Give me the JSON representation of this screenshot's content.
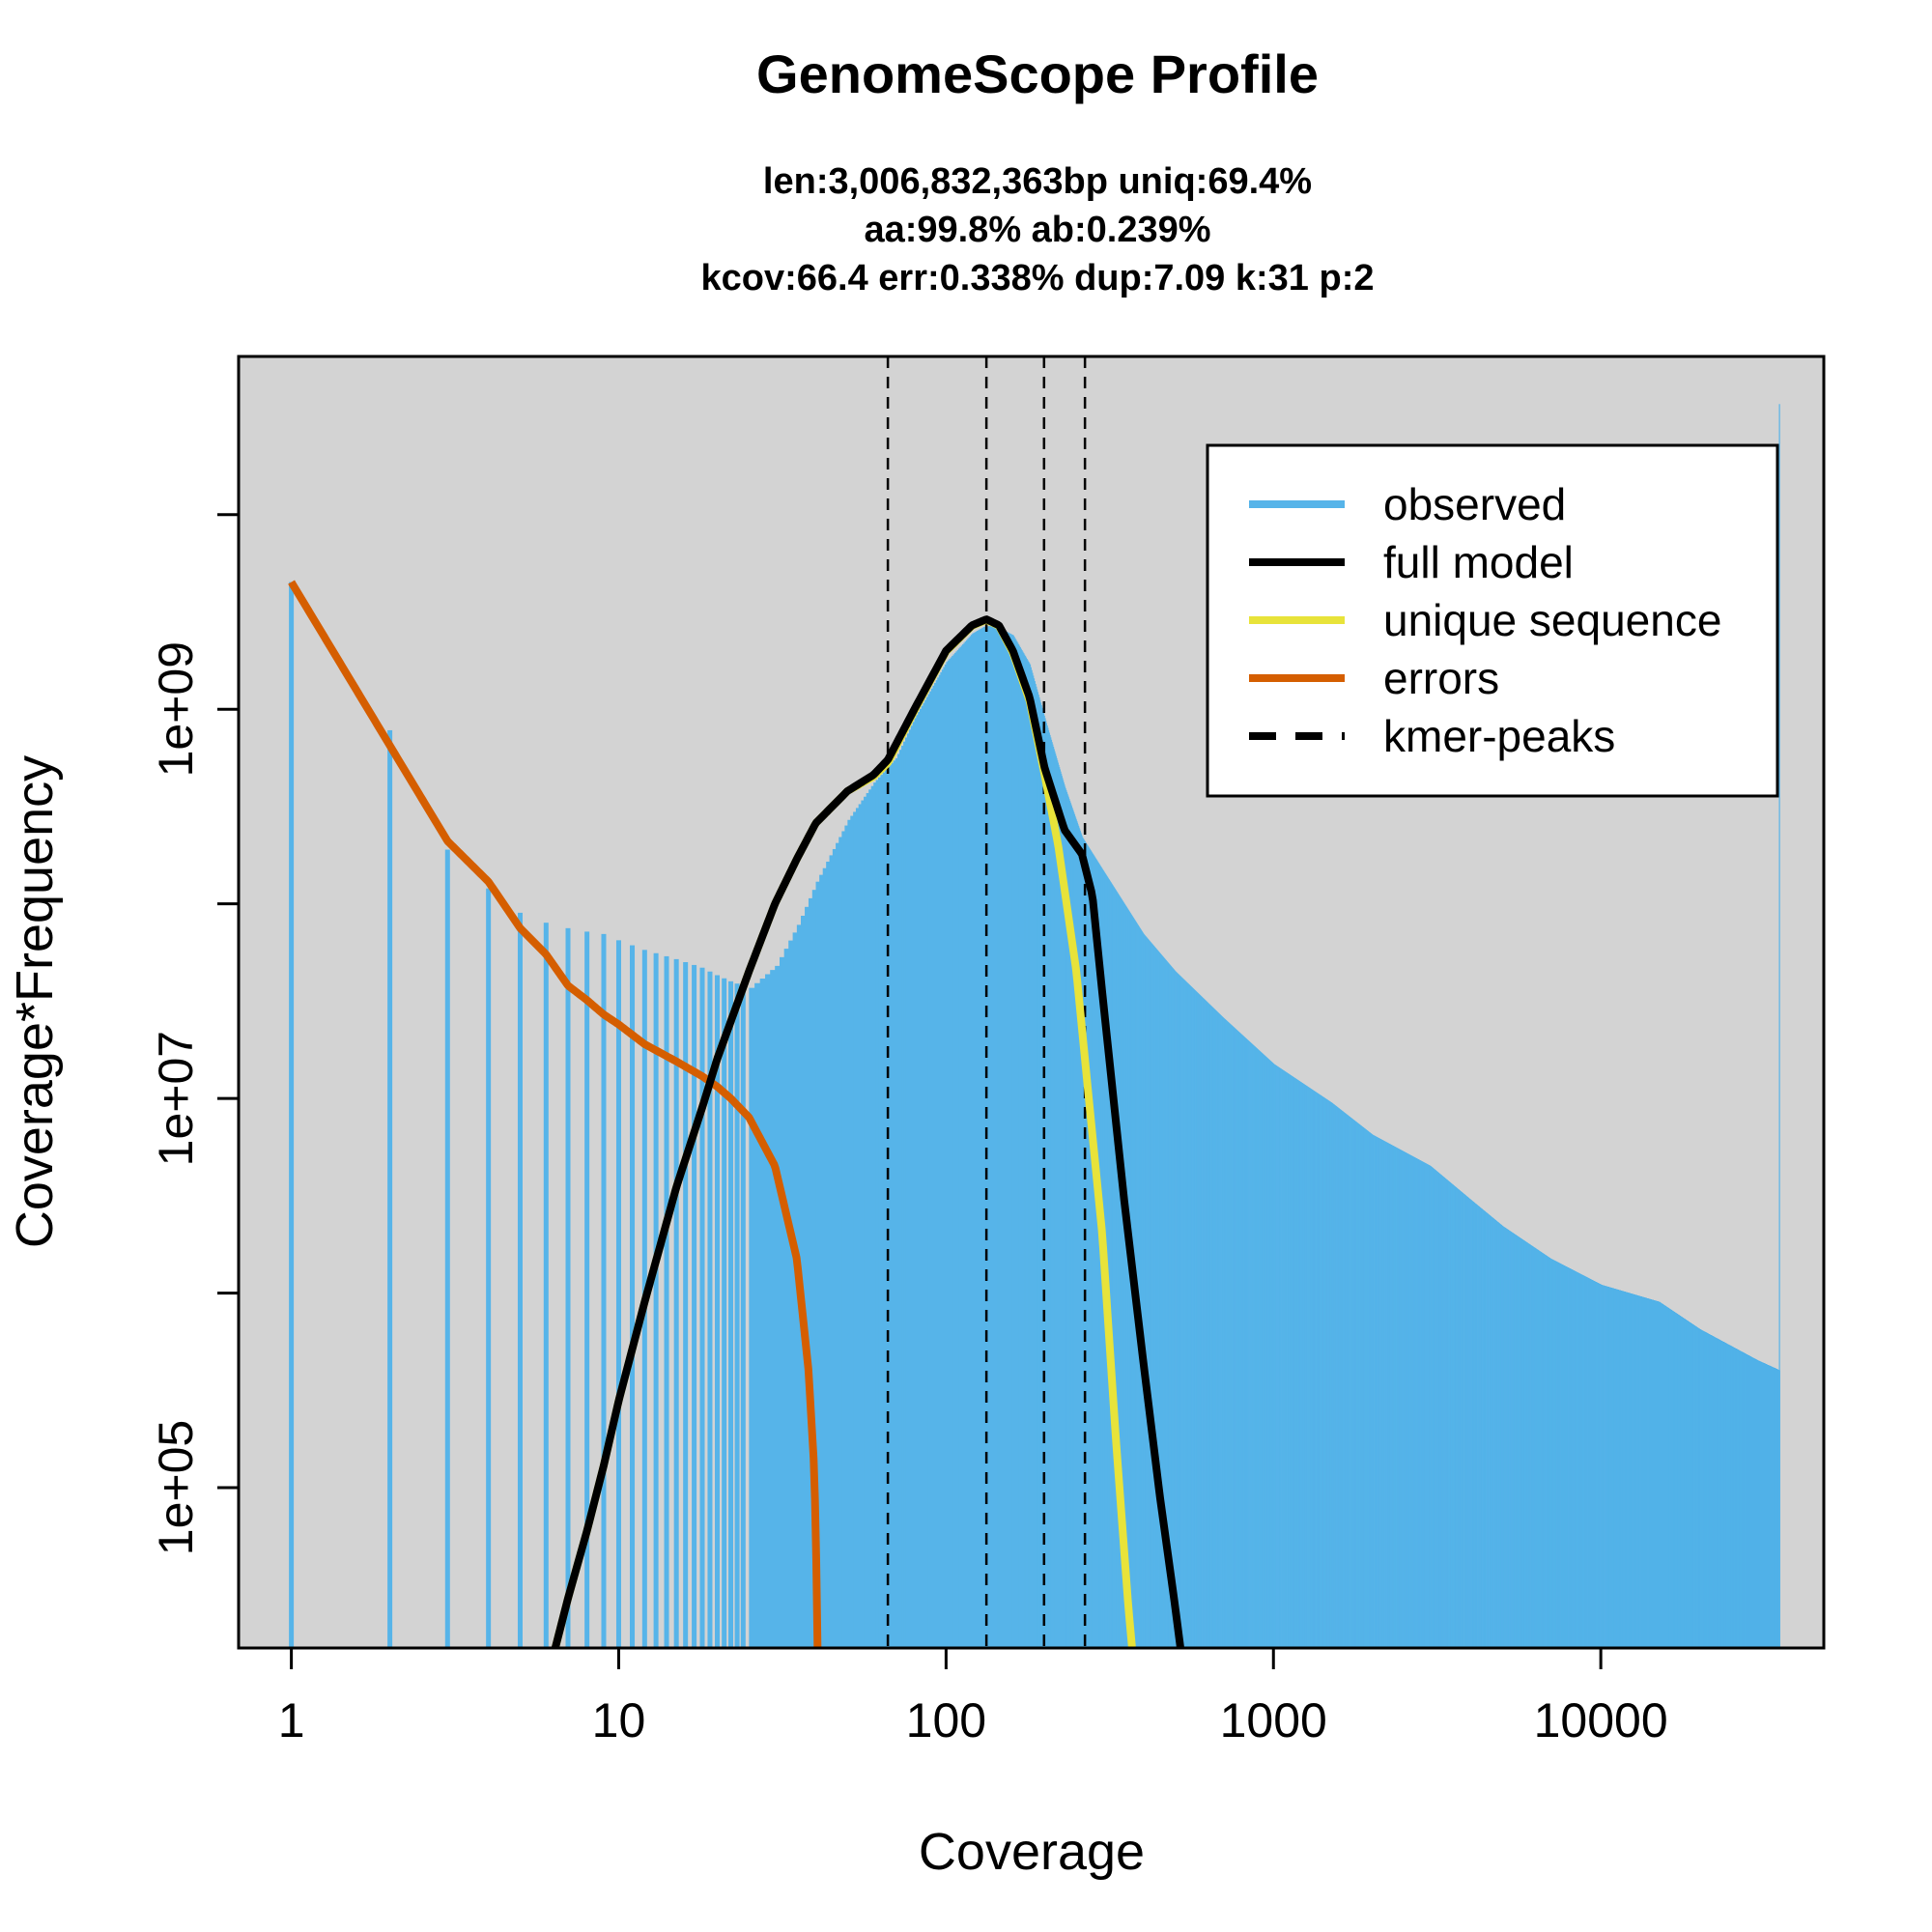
{
  "chart_data": {
    "type": "line",
    "title": "GenomeScope Profile",
    "subtitle_lines": [
      "len:3,006,832,363bp uniq:69.4%",
      "aa:99.8% ab:0.239%",
      "kcov:66.4 err:0.338%  dup:7.09  k:31 p:2"
    ],
    "xlabel": "Coverage",
    "ylabel": "Coverage*Frequency",
    "x_scale": "log",
    "y_scale": "log",
    "xlim": [
      0.69,
      48000
    ],
    "ylim": [
      15000,
      65000000000
    ],
    "x_ticks": [
      1,
      10,
      100,
      1000,
      10000
    ],
    "x_tick_labels": [
      "1",
      "10",
      "100",
      "1000",
      "10000"
    ],
    "y_ticks": [
      100000,
      1000000,
      10000000,
      100000000,
      1000000000,
      10000000000
    ],
    "y_tick_labels": [
      "1e+05",
      "",
      "1e+07",
      "",
      "1e+09",
      ""
    ],
    "background": "#d3d3d3",
    "legend_position": "top-right",
    "legend": [
      {
        "label": "observed",
        "color": "#56b4e9",
        "style": "solid"
      },
      {
        "label": "full model",
        "color": "#000000",
        "style": "solid"
      },
      {
        "label": "unique sequence",
        "color": "#e8e33a",
        "style": "solid"
      },
      {
        "label": "errors",
        "color": "#d55e00",
        "style": "solid"
      },
      {
        "label": "kmer-peaks",
        "color": "#000000",
        "style": "dashed"
      }
    ],
    "kmer_peaks": [
      66.4,
      132.8,
      199.2,
      265.6
    ],
    "series": [
      {
        "name": "observed",
        "color": "#56b4e9",
        "render": "histogram",
        "x": [
          1,
          2,
          3,
          4,
          5,
          6,
          7,
          8,
          9,
          10,
          12,
          15,
          18,
          20,
          22,
          25,
          30,
          35,
          40,
          50,
          60,
          70,
          80,
          100,
          120,
          130,
          140,
          160,
          180,
          200,
          230,
          260,
          300,
          400,
          500,
          700,
          1000,
          1500,
          2000,
          3000,
          4000,
          5000,
          7000,
          10000,
          15000,
          20000,
          30000,
          35000
        ],
        "y": [
          4500000000,
          780000000,
          190000000,
          120000000,
          90000000,
          80000000,
          75000000,
          72000000,
          70000000,
          65000000,
          58000000,
          52000000,
          47000000,
          43000000,
          40000000,
          37000000,
          48000000,
          78000000,
          130000000,
          270000000,
          420000000,
          560000000,
          900000000,
          1750000000,
          2450000000,
          2650000000,
          2700000000,
          2400000000,
          1700000000,
          900000000,
          400000000,
          220000000,
          150000000,
          70000000,
          45000000,
          26000000,
          15000000,
          9500000,
          6500000,
          4500000,
          3000000,
          2200000,
          1500000,
          1100000,
          900000,
          650000,
          450000,
          400000
        ]
      },
      {
        "name": "full model",
        "color": "#000000",
        "x": [
          6.4,
          7,
          8,
          9,
          10,
          12,
          15,
          18,
          20,
          25,
          30,
          35,
          40,
          50,
          60,
          66.4,
          80,
          100,
          120,
          132.8,
          145,
          160,
          180,
          200,
          230,
          260,
          280,
          300,
          350,
          400,
          450,
          500,
          520
        ],
        "y": [
          15000,
          27000,
          60000,
          130000,
          280000,
          900000,
          3500000,
          9000000,
          16000000,
          45000000,
          100000000,
          170000000,
          260000000,
          380000000,
          460000000,
          550000000,
          1000000000,
          2000000000,
          2700000000,
          2900000000,
          2700000000,
          2000000000,
          1150000000,
          500000000,
          240000000,
          180000000,
          110000000,
          35000000,
          3000000,
          450000,
          90000,
          25000,
          15000
        ]
      },
      {
        "name": "unique sequence",
        "color": "#e8e33a",
        "x": [
          6.4,
          7,
          8,
          9,
          10,
          12,
          15,
          18,
          20,
          25,
          30,
          35,
          40,
          50,
          60,
          66.4,
          80,
          100,
          120,
          132.8,
          145,
          160,
          180,
          200,
          220,
          250,
          270,
          300,
          330,
          360,
          370
        ],
        "y": [
          15000,
          27000,
          60000,
          130000,
          280000,
          900000,
          3500000,
          9000000,
          16000000,
          45000000,
          100000000,
          170000000,
          260000000,
          380000000,
          450000000,
          530000000,
          980000000,
          1980000000,
          2680000000,
          2880000000,
          2680000000,
          1950000000,
          1100000000,
          460000000,
          200000000,
          45000000,
          12000000,
          2000000,
          180000,
          25000,
          15000
        ]
      },
      {
        "name": "errors",
        "color": "#d55e00",
        "x": [
          1,
          2,
          3,
          4,
          5,
          6,
          7,
          8,
          9,
          10,
          12,
          15,
          18,
          20,
          22,
          25,
          30,
          35,
          38,
          39.5,
          40,
          40.5
        ],
        "y": [
          4500000000,
          650000000,
          210000000,
          130000000,
          75000000,
          55000000,
          38000000,
          32000000,
          27000000,
          24000000,
          19000000,
          15500000,
          13000000,
          11500000,
          10000000,
          8000000,
          4500000,
          1500000,
          400000,
          130000,
          60000,
          15000
        ]
      }
    ]
  }
}
